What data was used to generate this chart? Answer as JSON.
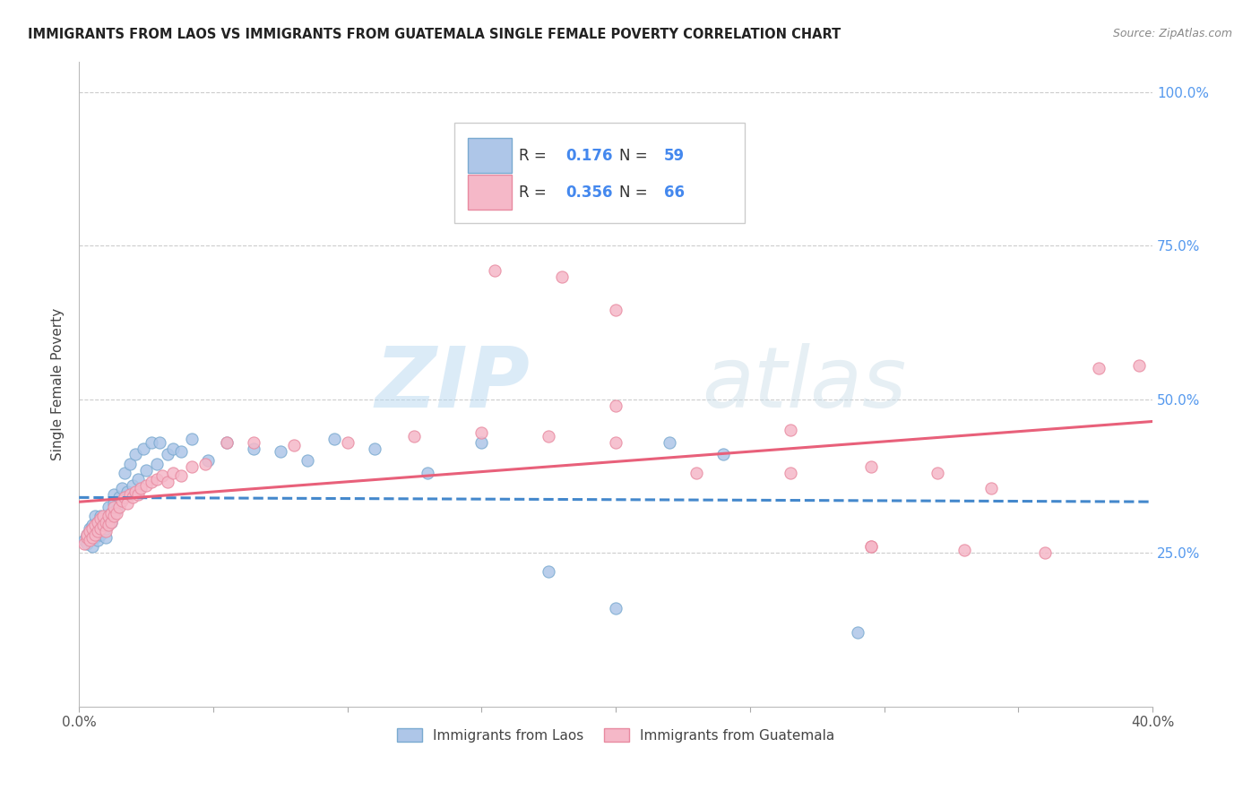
{
  "title": "IMMIGRANTS FROM LAOS VS IMMIGRANTS FROM GUATEMALA SINGLE FEMALE POVERTY CORRELATION CHART",
  "source": "Source: ZipAtlas.com",
  "ylabel": "Single Female Poverty",
  "xmin": 0.0,
  "xmax": 0.4,
  "ymin": 0.0,
  "ymax": 1.05,
  "yticks": [
    0.25,
    0.5,
    0.75,
    1.0
  ],
  "ytick_labels": [
    "25.0%",
    "50.0%",
    "75.0%",
    "100.0%"
  ],
  "watermark_zip": "ZIP",
  "watermark_atlas": "atlas",
  "series1_label": "Immigrants from Laos",
  "series2_label": "Immigrants from Guatemala",
  "series1_R": "0.176",
  "series1_N": "59",
  "series2_R": "0.356",
  "series2_N": "66",
  "series1_color": "#aec6e8",
  "series2_color": "#f5b8c8",
  "series1_edge": "#7aaad0",
  "series2_edge": "#e88aa0",
  "trend1_color": "#4488cc",
  "trend2_color": "#e8607a",
  "background": "#ffffff",
  "series1_x": [
    0.002,
    0.003,
    0.003,
    0.004,
    0.004,
    0.005,
    0.005,
    0.005,
    0.006,
    0.006,
    0.007,
    0.007,
    0.007,
    0.008,
    0.008,
    0.008,
    0.009,
    0.009,
    0.01,
    0.01,
    0.01,
    0.011,
    0.011,
    0.012,
    0.012,
    0.013,
    0.013,
    0.014,
    0.015,
    0.016,
    0.017,
    0.018,
    0.019,
    0.02,
    0.021,
    0.022,
    0.024,
    0.025,
    0.027,
    0.029,
    0.03,
    0.033,
    0.035,
    0.038,
    0.042,
    0.048,
    0.055,
    0.065,
    0.075,
    0.085,
    0.095,
    0.11,
    0.13,
    0.15,
    0.175,
    0.2,
    0.22,
    0.24,
    0.29
  ],
  "series1_y": [
    0.27,
    0.265,
    0.28,
    0.275,
    0.29,
    0.26,
    0.285,
    0.295,
    0.275,
    0.31,
    0.27,
    0.285,
    0.3,
    0.28,
    0.295,
    0.31,
    0.285,
    0.3,
    0.275,
    0.29,
    0.305,
    0.31,
    0.325,
    0.3,
    0.315,
    0.33,
    0.345,
    0.32,
    0.34,
    0.355,
    0.38,
    0.35,
    0.395,
    0.36,
    0.41,
    0.37,
    0.42,
    0.385,
    0.43,
    0.395,
    0.43,
    0.41,
    0.42,
    0.415,
    0.435,
    0.4,
    0.43,
    0.42,
    0.415,
    0.4,
    0.435,
    0.42,
    0.38,
    0.43,
    0.22,
    0.16,
    0.43,
    0.41,
    0.12
  ],
  "series2_x": [
    0.002,
    0.003,
    0.003,
    0.004,
    0.004,
    0.005,
    0.005,
    0.006,
    0.006,
    0.007,
    0.007,
    0.008,
    0.008,
    0.009,
    0.009,
    0.01,
    0.01,
    0.011,
    0.011,
    0.012,
    0.012,
    0.013,
    0.013,
    0.014,
    0.015,
    0.016,
    0.017,
    0.018,
    0.019,
    0.02,
    0.021,
    0.022,
    0.023,
    0.025,
    0.027,
    0.029,
    0.031,
    0.033,
    0.035,
    0.038,
    0.042,
    0.047,
    0.055,
    0.065,
    0.08,
    0.1,
    0.125,
    0.15,
    0.175,
    0.2,
    0.23,
    0.265,
    0.295,
    0.33,
    0.36,
    0.2,
    0.155,
    0.18,
    0.2,
    0.265,
    0.295,
    0.295,
    0.32,
    0.34,
    0.38,
    0.395
  ],
  "series2_y": [
    0.265,
    0.275,
    0.28,
    0.27,
    0.285,
    0.275,
    0.29,
    0.28,
    0.295,
    0.285,
    0.3,
    0.29,
    0.305,
    0.295,
    0.31,
    0.285,
    0.3,
    0.295,
    0.31,
    0.3,
    0.315,
    0.31,
    0.325,
    0.315,
    0.325,
    0.335,
    0.34,
    0.33,
    0.345,
    0.34,
    0.35,
    0.345,
    0.355,
    0.36,
    0.365,
    0.37,
    0.375,
    0.365,
    0.38,
    0.375,
    0.39,
    0.395,
    0.43,
    0.43,
    0.425,
    0.43,
    0.44,
    0.445,
    0.44,
    0.43,
    0.38,
    0.38,
    0.26,
    0.255,
    0.25,
    0.645,
    0.71,
    0.7,
    0.49,
    0.45,
    0.39,
    0.26,
    0.38,
    0.355,
    0.55,
    0.555
  ]
}
